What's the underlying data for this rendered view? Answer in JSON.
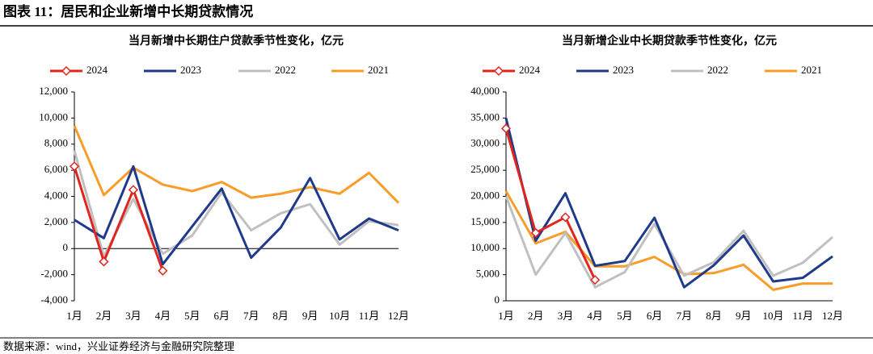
{
  "title": "图表 11：居民和企业新增中长期贷款情况",
  "source": "数据来源：wind，兴业证券经济与金融研究院整理",
  "chart_data": [
    {
      "type": "line",
      "title": "当月新增中长期住户贷款季节性变化，亿元",
      "categories": [
        "1月",
        "2月",
        "3月",
        "4月",
        "5月",
        "6月",
        "7月",
        "8月",
        "9月",
        "10月",
        "11月",
        "12月"
      ],
      "series": [
        {
          "name": "2024",
          "color": "#e0241e",
          "marker": "diamond",
          "values": [
            6300,
            -1000,
            4500,
            -1700,
            null,
            null,
            null,
            null,
            null,
            null,
            null,
            null
          ]
        },
        {
          "name": "2023",
          "color": "#1f3a8a",
          "values": [
            2200,
            800,
            6300,
            -1200,
            1700,
            4600,
            -700,
            1600,
            5400,
            700,
            2300,
            1400
          ]
        },
        {
          "name": "2022",
          "color": "#c0c0c0",
          "values": [
            7500,
            -600,
            3800,
            -400,
            1000,
            4300,
            1400,
            2700,
            3400,
            300,
            2100,
            1800
          ]
        },
        {
          "name": "2021",
          "color": "#f89c2a",
          "values": [
            9400,
            4100,
            6200,
            4900,
            4400,
            5100,
            3900,
            4200,
            4700,
            4200,
            5800,
            3500
          ]
        }
      ],
      "ylim": [
        -4000,
        12000
      ],
      "yticks": [
        {
          "value": -4000,
          "label": "-4,000"
        },
        {
          "value": -2000,
          "label": "-2,000"
        },
        0,
        {
          "value": 2000,
          "label": "2,000"
        },
        {
          "value": 4000,
          "label": "4,000"
        },
        {
          "value": 6000,
          "label": "6,000"
        },
        {
          "value": 8000,
          "label": "8,000"
        },
        {
          "value": 10000,
          "label": "10,000"
        },
        {
          "value": 12000,
          "label": "12,000"
        }
      ],
      "legend": "top"
    },
    {
      "type": "line",
      "title": "当月新增企业中长期贷款季节性变化，亿元",
      "categories": [
        "1月",
        "2月",
        "3月",
        "4月",
        "5月",
        "6月",
        "7月",
        "8月",
        "9月",
        "10月",
        "11月",
        "12月"
      ],
      "series": [
        {
          "name": "2024",
          "color": "#e0241e",
          "marker": "diamond",
          "values": [
            33000,
            13000,
            16000,
            4000,
            null,
            null,
            null,
            null,
            null,
            null,
            null,
            null
          ]
        },
        {
          "name": "2023",
          "color": "#1f3a8a",
          "values": [
            35000,
            11500,
            20600,
            6700,
            7600,
            15900,
            2600,
            6800,
            12500,
            3700,
            4400,
            8500
          ]
        },
        {
          "name": "2022",
          "color": "#c0c0c0",
          "values": [
            20000,
            5000,
            13000,
            2600,
            5500,
            14700,
            4800,
            7400,
            13400,
            4800,
            7300,
            12200
          ]
        },
        {
          "name": "2021",
          "color": "#f89c2a",
          "values": [
            21000,
            11000,
            13200,
            6600,
            6600,
            8400,
            5100,
            5300,
            6900,
            2100,
            3300,
            3300
          ]
        }
      ],
      "ylim": [
        0,
        40000
      ],
      "yticks": [
        0,
        {
          "value": 5000,
          "label": "5,000"
        },
        {
          "value": 10000,
          "label": "10,000"
        },
        {
          "value": 15000,
          "label": "15,000"
        },
        {
          "value": 20000,
          "label": "20,000"
        },
        {
          "value": 25000,
          "label": "25,000"
        },
        {
          "value": 30000,
          "label": "30,000"
        },
        {
          "value": 35000,
          "label": "35,000"
        },
        {
          "value": 40000,
          "label": "40,000"
        }
      ],
      "legend": "top"
    }
  ]
}
